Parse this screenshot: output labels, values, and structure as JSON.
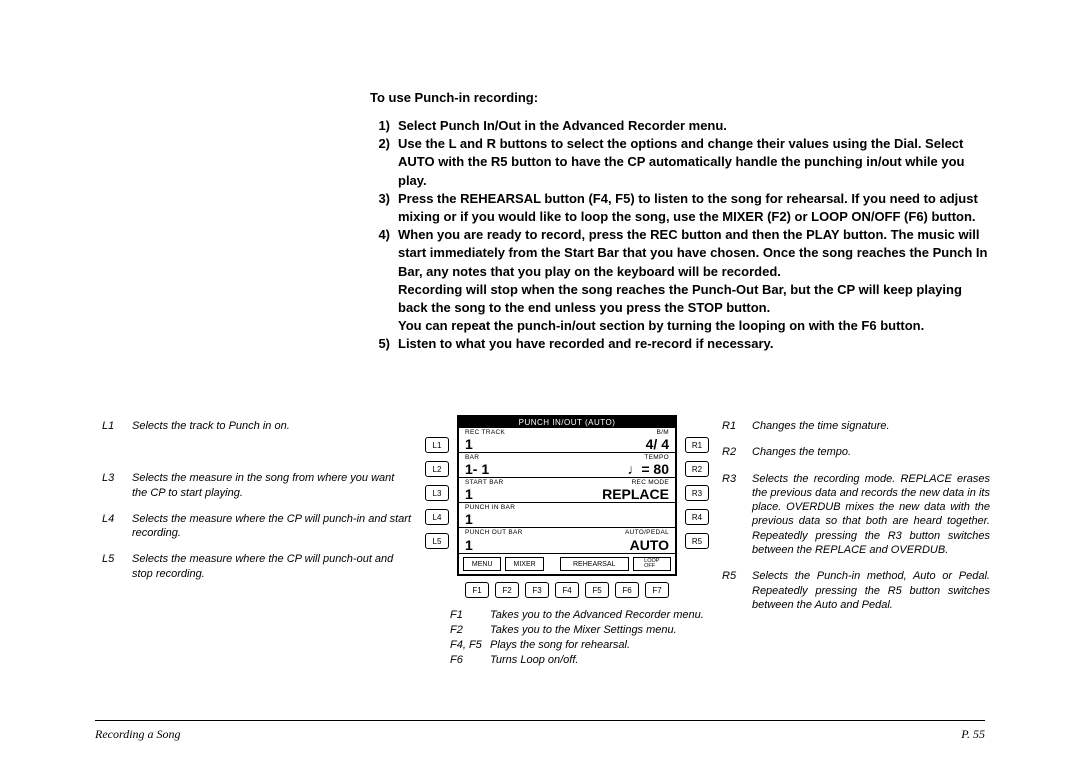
{
  "section_title": "To use Punch-in recording:",
  "steps": [
    {
      "num": "1)",
      "text": "Select Punch In/Out in the Advanced Recorder menu."
    },
    {
      "num": "2)",
      "text": "Use the L and R buttons to select the options and change their values using the Dial.  Select AUTO with the R5 button to have the CP automatically handle the punching in/out while you play."
    },
    {
      "num": "3)",
      "text": "Press the REHEARSAL button (F4, F5) to listen to the song for rehearsal.  If you need to adjust mixing or if you would like to loop the song, use the MIXER (F2) or LOOP ON/OFF (F6) button."
    },
    {
      "num": "4)",
      "text": "When you are ready to record, press the REC button and then the PLAY button.  The music will start immediately from the Start Bar that you have chosen.  Once the song reaches the Punch In Bar, any notes that you play on the keyboard will be recorded.\nRecording will stop when the song reaches the Punch-Out Bar, but the CP will keep playing back the song  to the end unless you press the STOP button.\nYou can repeat the punch-in/out section by turning the looping on with the F6 button."
    },
    {
      "num": "5)",
      "text": "Listen to what you have recorded and re-record if necessary."
    }
  ],
  "left_desc": [
    {
      "key": "L1",
      "text": "Selects the track to Punch in on."
    },
    {
      "key": "",
      "text": ""
    },
    {
      "key": "L3",
      "text": "Selects the measure in the song from where you want the CP to start playing."
    },
    {
      "key": "L4",
      "text": "Selects the measure where the CP will punch-in and start recording."
    },
    {
      "key": "L5",
      "text": "Selects the measure where the CP will punch-out and stop recording."
    }
  ],
  "right_desc": [
    {
      "key": "R1",
      "text": "Changes the time signature."
    },
    {
      "key": "R2",
      "text": "Changes the tempo."
    },
    {
      "key": "R3",
      "text": "Selects the recording mode.  REPLACE erases the previous data and records the new data in its place.  OVERDUB mixes the new data with the previous data so that both are heard together.  Repeatedly pressing the R3 button switches between the REPLACE and OVERDUB."
    },
    {
      "key": "R5",
      "text": "Selects the Punch-in method, Auto or Pedal.  Repeatedly pressing the R5 button switches between the Auto and Pedal."
    }
  ],
  "f_desc": [
    {
      "key": "F1",
      "text": "Takes you to the Advanced Recorder menu."
    },
    {
      "key": "F2",
      "text": "Takes you to the Mixer Settings menu."
    },
    {
      "key": "F4, F5",
      "text": "Plays the song for rehearsal."
    },
    {
      "key": "F6",
      "text": "Turns Loop on/off."
    }
  ],
  "lcd": {
    "title": "PUNCH IN/OUT (AUTO)",
    "rows": [
      {
        "ll": "REC TRACK",
        "lv": "1",
        "rl": "B/M",
        "rv": "4/ 4"
      },
      {
        "ll": "BAR",
        "lv": "1- 1",
        "rl": "TEMPO",
        "rv": "♩= 80"
      },
      {
        "ll": "START BAR",
        "lv": "1",
        "rl": "REC MODE",
        "rv": "REPLACE"
      },
      {
        "ll": "PUNCH IN BAR",
        "lv": "1",
        "rl": "",
        "rv": ""
      },
      {
        "ll": "PUNCH OUT BAR",
        "lv": "1",
        "rl": "AUTO/PEDAL",
        "rv": "AUTO"
      }
    ],
    "softkeys": [
      "MENU",
      "MIXER",
      "",
      "REHEARSAL",
      "LOOP OFF"
    ],
    "l_buttons": [
      "L1",
      "L2",
      "L3",
      "L4",
      "L5"
    ],
    "r_buttons": [
      "R1",
      "R2",
      "R3",
      "R4",
      "R5"
    ],
    "f_buttons": [
      "F1",
      "F2",
      "F3",
      "F4",
      "F5",
      "F6",
      "F7"
    ]
  },
  "footer": {
    "left": "Recording a Song",
    "right": "P. 55"
  },
  "colors": {
    "text": "#000000",
    "bg": "#ffffff"
  },
  "fonts": {
    "body_size_pt": 10,
    "italic_size_pt": 8.5
  }
}
